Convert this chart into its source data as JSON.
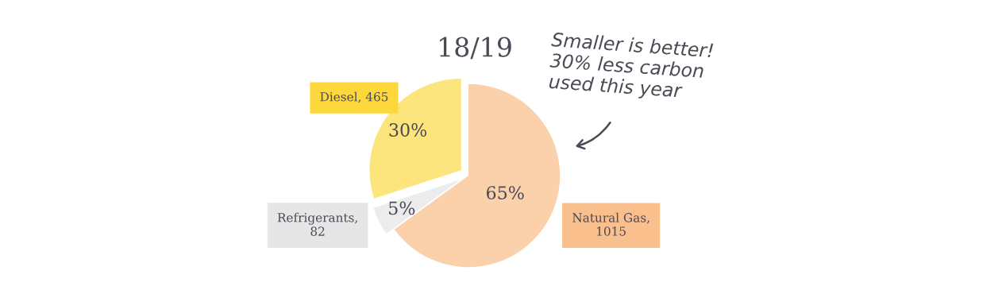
{
  "chart_data": {
    "type": "pie",
    "title": "18/19",
    "categories": [
      "Natural Gas, 1015",
      "Refrigerants, 82",
      "Diesel, 465"
    ],
    "values": [
      65,
      5,
      30
    ],
    "colors": [
      "#fad1aa",
      "#ececec",
      "#fde57e"
    ],
    "value_labels": [
      "65%",
      "5%",
      "30%"
    ],
    "annotations": [
      "Smaller is better!\n30% less carbon\nused this year"
    ]
  }
}
